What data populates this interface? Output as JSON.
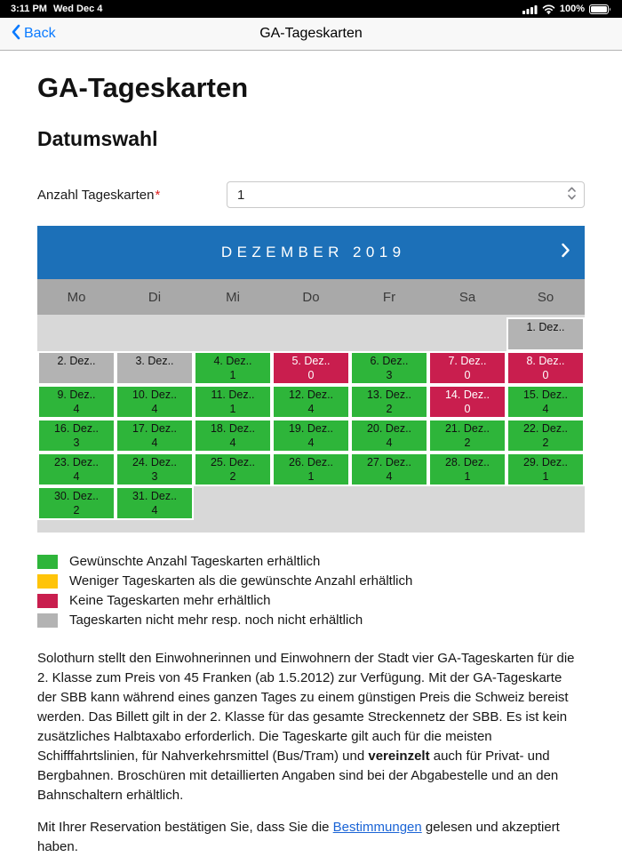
{
  "status_bar": {
    "time": "3:11 PM",
    "date": "Wed Dec 4",
    "battery": "100%"
  },
  "nav": {
    "back_label": "Back",
    "title": "GA-Tageskarten"
  },
  "page": {
    "title": "GA-Tageskarten",
    "section_title": "Datumswahl"
  },
  "form": {
    "label": "Anzahl Tageskarten",
    "required_mark": "*",
    "selected_value": "1"
  },
  "calendar": {
    "month_title": "DEZEMBER 2019",
    "day_headers": [
      "Mo",
      "Di",
      "Mi",
      "Do",
      "Fr",
      "Sa",
      "So"
    ],
    "weeks": [
      [
        null,
        null,
        null,
        null,
        null,
        null,
        {
          "label": "1. Dez..",
          "count": "",
          "status": "unavailable"
        }
      ],
      [
        {
          "label": "2. Dez..",
          "count": "",
          "status": "unavailable"
        },
        {
          "label": "3. Dez..",
          "count": "",
          "status": "unavailable"
        },
        {
          "label": "4. Dez..",
          "count": "1",
          "status": "available"
        },
        {
          "label": "5. Dez..",
          "count": "0",
          "status": "soldout"
        },
        {
          "label": "6. Dez..",
          "count": "3",
          "status": "available"
        },
        {
          "label": "7. Dez..",
          "count": "0",
          "status": "soldout"
        },
        {
          "label": "8. Dez..",
          "count": "0",
          "status": "soldout"
        }
      ],
      [
        {
          "label": "9. Dez..",
          "count": "4",
          "status": "available"
        },
        {
          "label": "10. Dez..",
          "count": "4",
          "status": "available"
        },
        {
          "label": "11. Dez..",
          "count": "1",
          "status": "available"
        },
        {
          "label": "12. Dez..",
          "count": "4",
          "status": "available"
        },
        {
          "label": "13. Dez..",
          "count": "2",
          "status": "available"
        },
        {
          "label": "14. Dez..",
          "count": "0",
          "status": "soldout"
        },
        {
          "label": "15. Dez..",
          "count": "4",
          "status": "available"
        }
      ],
      [
        {
          "label": "16. Dez..",
          "count": "3",
          "status": "available"
        },
        {
          "label": "17. Dez..",
          "count": "4",
          "status": "available"
        },
        {
          "label": "18. Dez..",
          "count": "4",
          "status": "available"
        },
        {
          "label": "19. Dez..",
          "count": "4",
          "status": "available"
        },
        {
          "label": "20. Dez..",
          "count": "4",
          "status": "available"
        },
        {
          "label": "21. Dez..",
          "count": "2",
          "status": "available"
        },
        {
          "label": "22. Dez..",
          "count": "2",
          "status": "available"
        }
      ],
      [
        {
          "label": "23. Dez..",
          "count": "4",
          "status": "available"
        },
        {
          "label": "24. Dez..",
          "count": "3",
          "status": "available"
        },
        {
          "label": "25. Dez..",
          "count": "2",
          "status": "available"
        },
        {
          "label": "26. Dez..",
          "count": "1",
          "status": "available"
        },
        {
          "label": "27. Dez..",
          "count": "4",
          "status": "available"
        },
        {
          "label": "28. Dez..",
          "count": "1",
          "status": "available"
        },
        {
          "label": "29. Dez..",
          "count": "1",
          "status": "available"
        }
      ],
      [
        {
          "label": "30. Dez..",
          "count": "2",
          "status": "available"
        },
        {
          "label": "31. Dez..",
          "count": "4",
          "status": "available"
        },
        null,
        null,
        null,
        null,
        null
      ]
    ]
  },
  "legend": {
    "items": [
      {
        "color_key": "available_green",
        "label": "Gewünschte Anzahl Tageskarten erhältlich"
      },
      {
        "color_key": "partial_yellow",
        "label": "Weniger Tageskarten als die gewünschte Anzahl erhältlich"
      },
      {
        "color_key": "soldout_red",
        "label": "Keine Tageskarten mehr erhältlich"
      },
      {
        "color_key": "unavailable_gray",
        "label": "Tageskarten nicht mehr resp. noch nicht erhältlich"
      }
    ]
  },
  "colors": {
    "header_blue": "#1c70b8",
    "available_green": "#2eb53a",
    "partial_yellow": "#ffc409",
    "soldout_red": "#c91e4e",
    "unavailable_gray": "#b3b3b3",
    "link_blue": "#1a64d6",
    "ios_blue": "#0a7aff",
    "required_red": "#e02020"
  },
  "description": {
    "before_bold": "Solothurn stellt den Einwohnerinnen und Einwohnern der Stadt vier GA-Tageskarten für die 2. Klasse zum Preis von 45 Franken (ab 1.5.2012) zur Verfügung. Mit der GA-Tageskarte der SBB kann während eines ganzen Tages zu einem günstigen Preis die Schweiz bereist werden. Das Billett gilt in der 2. Klasse für das gesamte Streckennetz der SBB. Es ist kein zusätzliches Halbtaxabo erforderlich. Die Tageskarte gilt auch für die meisten Schifffahrtslinien, für Nahverkehrsmittel (Bus/Tram) und ",
    "bold": "vereinzelt",
    "after_bold": " auch für Privat- und Bergbahnen. Broschüren mit detaillierten Angaben sind bei der Abgabestelle und an den Bahnschaltern erhältlich."
  },
  "footer": {
    "before_link": "Mit Ihrer Reservation bestätigen Sie, dass Sie die ",
    "link": "Bestimmungen",
    "after_link": " gelesen und akzeptiert haben."
  }
}
